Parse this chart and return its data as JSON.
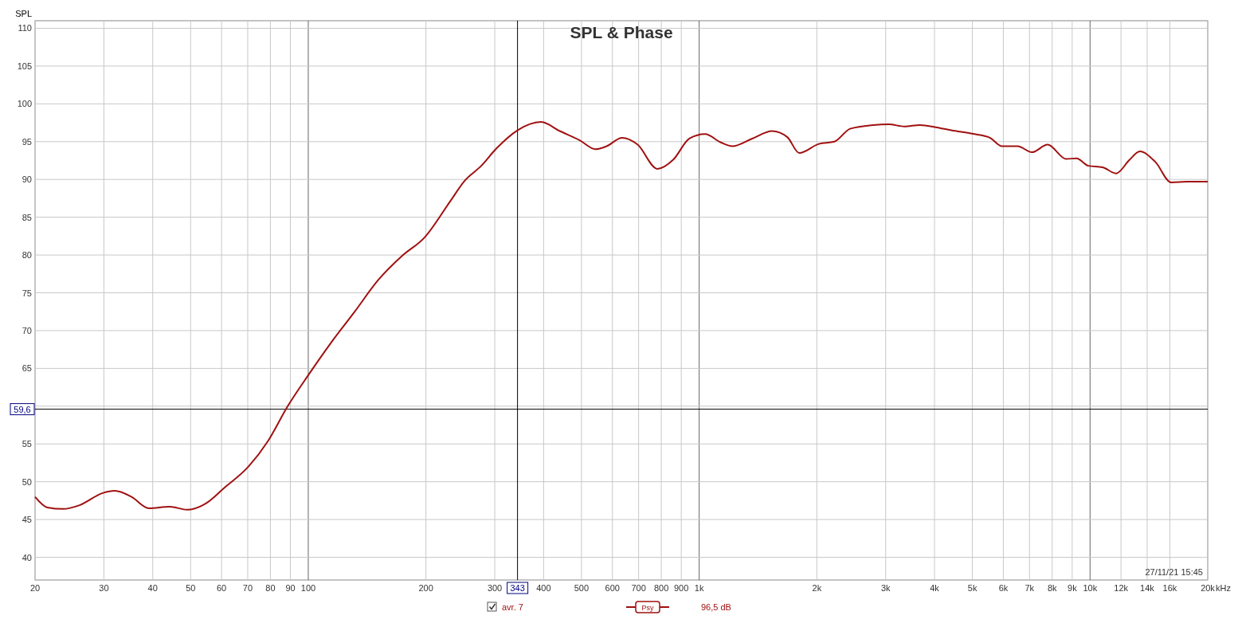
{
  "chart_data": {
    "type": "line",
    "title": "SPL & Phase",
    "ylabel": "SPL",
    "log": "x",
    "grid": true,
    "legend": "bottom",
    "marker": "none",
    "line_style": "solid",
    "xlim": [
      20,
      20000
    ],
    "ylim": [
      37,
      111
    ],
    "xticks": [
      20,
      30,
      40,
      50,
      60,
      70,
      80,
      90,
      100,
      200,
      300,
      400,
      500,
      600,
      700,
      800,
      900,
      {
        "value": 1000,
        "label": "1k"
      },
      {
        "value": 2000,
        "label": "2k"
      },
      {
        "value": 3000,
        "label": "3k"
      },
      {
        "value": 4000,
        "label": "4k"
      },
      {
        "value": 5000,
        "label": "5k"
      },
      {
        "value": 6000,
        "label": "6k"
      },
      {
        "value": 7000,
        "label": "7k"
      },
      {
        "value": 8000,
        "label": "8k"
      },
      {
        "value": 9000,
        "label": "9k"
      },
      {
        "value": 10000,
        "label": "10k"
      },
      {
        "value": 12000,
        "label": "12k"
      },
      {
        "value": 14000,
        "label": "14k"
      },
      {
        "value": 16000,
        "label": "16k"
      },
      {
        "value": 20000,
        "label": "20k"
      }
    ],
    "xlabel": "kHz",
    "yticks": [
      40,
      45,
      50,
      55,
      {
        "value": 60,
        "label": null
      },
      65,
      70,
      75,
      80,
      85,
      90,
      95,
      100,
      105,
      110
    ],
    "ref_lines": [
      {
        "axis": "x",
        "value": 343,
        "label": "343",
        "color": "#000000"
      },
      {
        "axis": "y",
        "value": 59.6,
        "label": "59,6",
        "color": "#000000"
      }
    ],
    "annotations": [
      "27/11/21 15:45",
      "Psy",
      "96,5 dB"
    ],
    "series": [
      {
        "name": "avr. 7",
        "color": "#a01010",
        "x": [
          20,
          21.5,
          23.6,
          26,
          29.8,
          32,
          35.3,
          39.1,
          44.2,
          49,
          54.6,
          61,
          70.3,
          78.9,
          88.6,
          100,
          114,
          131,
          151,
          173,
          199,
          230,
          251,
          277,
          303,
          343,
          394,
          440,
          494,
          543,
          580,
          635,
          696,
          782,
          858,
          944,
          1035,
          1136,
          1216,
          1367,
          1536,
          1681,
          1803,
          2024,
          2218,
          2433,
          2789,
          3055,
          3350,
          3673,
          4027,
          4415,
          5064,
          5552,
          5952,
          6527,
          7101,
          7785,
          8695,
          9232,
          9903,
          10770,
          11660,
          12622,
          13407,
          14700,
          16130,
          17690,
          20000
        ],
        "values": [
          48,
          46.6,
          46.4,
          46.9,
          48.5,
          48.8,
          48,
          46.5,
          46.7,
          46.3,
          47.1,
          49.2,
          52,
          55.4,
          60,
          64.1,
          68.3,
          72.4,
          76.7,
          79.8,
          82.4,
          87,
          89.8,
          91.8,
          94.1,
          96.5,
          97.6,
          96.4,
          95.2,
          94,
          94.4,
          95.5,
          94.6,
          91.4,
          92.6,
          95.4,
          96,
          94.9,
          94.4,
          95.4,
          96.4,
          95.6,
          93.5,
          94.7,
          95,
          96.7,
          97.2,
          97.3,
          97,
          97.2,
          96.9,
          96.5,
          96,
          95.5,
          94.4,
          94.4,
          93.6,
          94.6,
          92.7,
          92.8,
          91.8,
          91.6,
          90.8,
          92.6,
          93.7,
          92.3,
          89.6,
          89.7,
          89.7
        ]
      }
    ]
  }
}
